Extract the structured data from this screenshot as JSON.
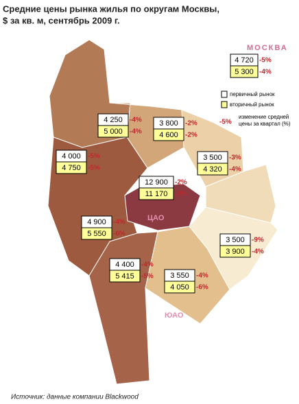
{
  "header": {
    "title_lines": [
      "Средние цены рынка жилья по округам Москвы,",
      "$ за кв. м, сентябрь 2009 г."
    ]
  },
  "city": {
    "label": "МОСКВА",
    "primary": "4 720",
    "primary_change": "-5%",
    "secondary": "5 300",
    "secondary_change": "-4%"
  },
  "legend": {
    "primary": "первичный рынок",
    "secondary": "вторичный рынок",
    "change_lines": [
      "изменение средней",
      "цены за квартал (%)"
    ],
    "change_example": "-5%"
  },
  "districts": [
    {
      "primary": "4 250",
      "primary_change": "-4%",
      "secondary": "5 000",
      "secondary_change": "-4%"
    },
    {
      "primary": "3 800",
      "primary_change": "-2%",
      "secondary": "4 600",
      "secondary_change": "-2%"
    },
    {
      "primary": "4 000",
      "primary_change": "-5%",
      "secondary": "4 750",
      "secondary_change": "-5%"
    },
    {
      "primary": "3 500",
      "primary_change": "-3%",
      "secondary": "4 320",
      "secondary_change": "-4%"
    },
    {
      "label": "ЦАО",
      "primary": "12 900",
      "primary_change": "-2%",
      "secondary": "11 170",
      "secondary_change": "-2%"
    },
    {
      "primary": "4 900",
      "primary_change": "-4%",
      "secondary": "5 550",
      "secondary_change": "-6%"
    },
    {
      "primary": "3 500",
      "primary_change": "-9%",
      "secondary": "3 900",
      "secondary_change": "-4%"
    },
    {
      "primary": "4 400",
      "primary_change": "-4%",
      "secondary": "5 415",
      "secondary_change": "-5%"
    },
    {
      "label": "ЮАО",
      "primary": "3 550",
      "primary_change": "-4%",
      "secondary": "4 050",
      "secondary_change": "-6%"
    }
  ],
  "footer": {
    "source": "Источник: данные компании Blackwood"
  }
}
